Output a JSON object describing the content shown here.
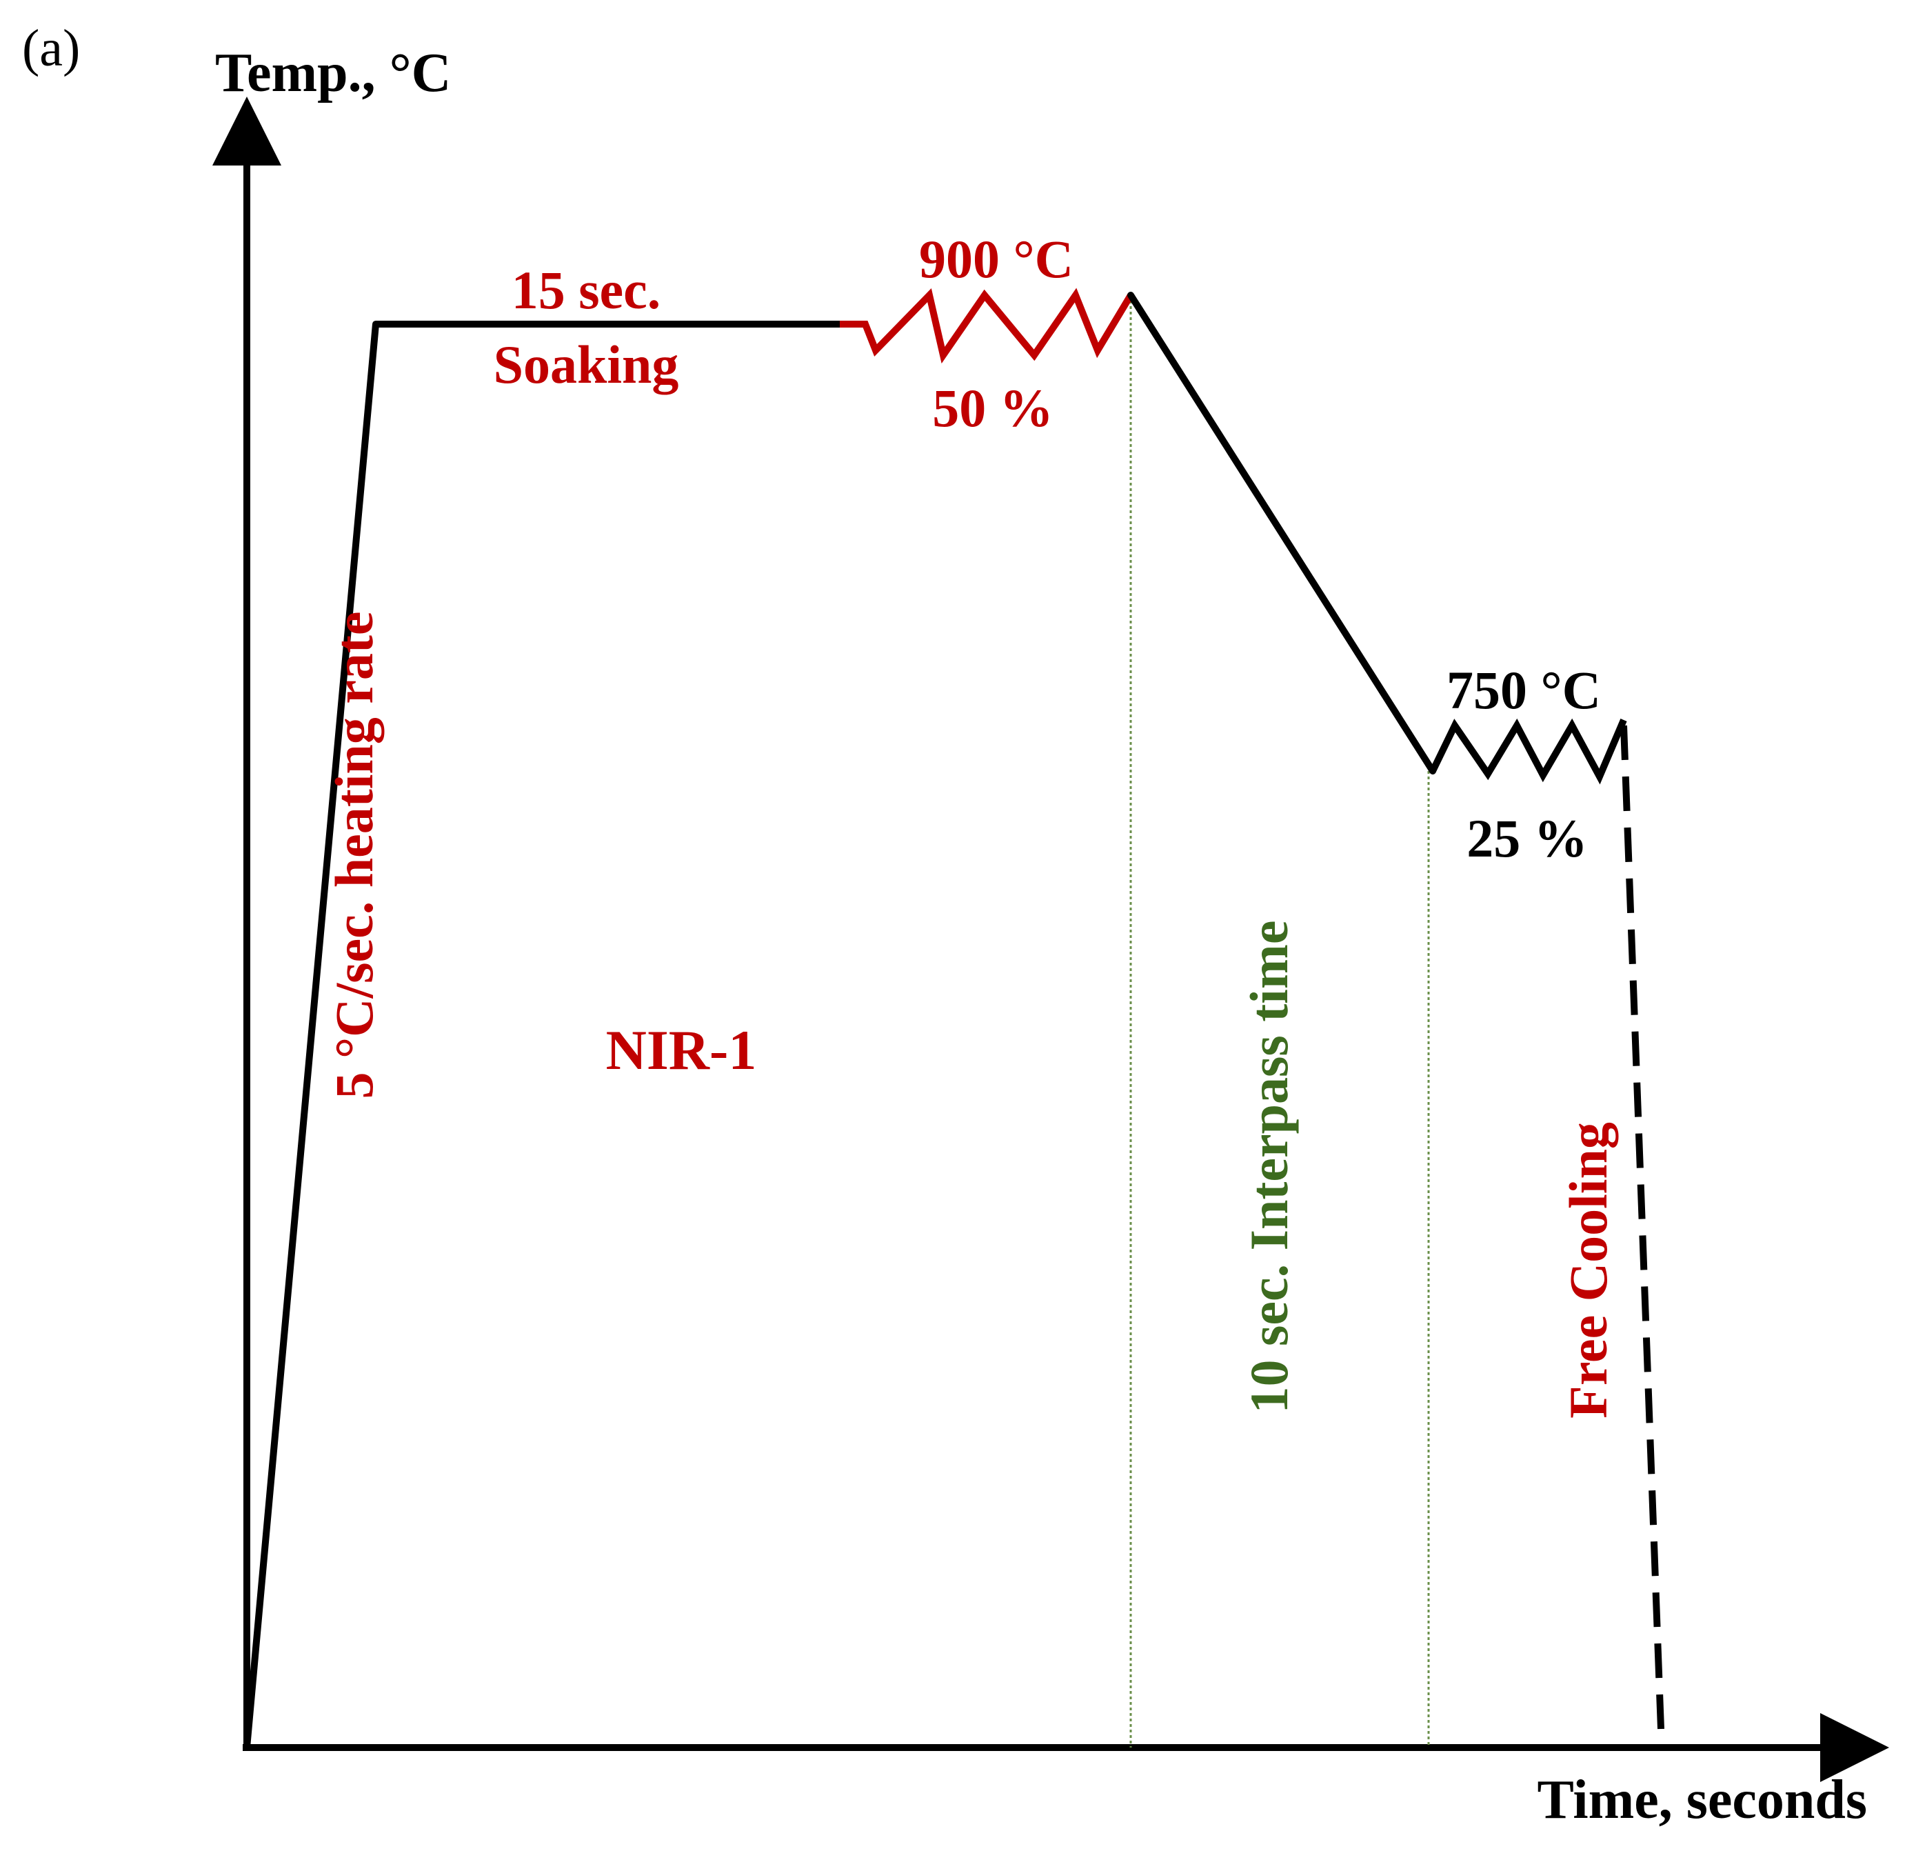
{
  "panel_label": "(a)",
  "axes": {
    "y_label": "Temp., °C",
    "x_label": "Time, seconds"
  },
  "annotations": {
    "heating": "5 °C/sec. heating rate",
    "soaking_line1": "15 sec.",
    "soaking_line2": "Soaking",
    "pass1_temp": "900 °C",
    "pass1_reduction": "50 %",
    "pass2_temp": "750 °C",
    "pass2_reduction": "25 %",
    "interpass": "10 sec. Interpass time",
    "cooling": "Free Cooling",
    "schedule_name": "NIR-1"
  },
  "colors": {
    "profile": "#000000",
    "highlight": "#c00000",
    "interpass": "#3d6b1f",
    "guide_line": "#6a8f4a"
  }
}
